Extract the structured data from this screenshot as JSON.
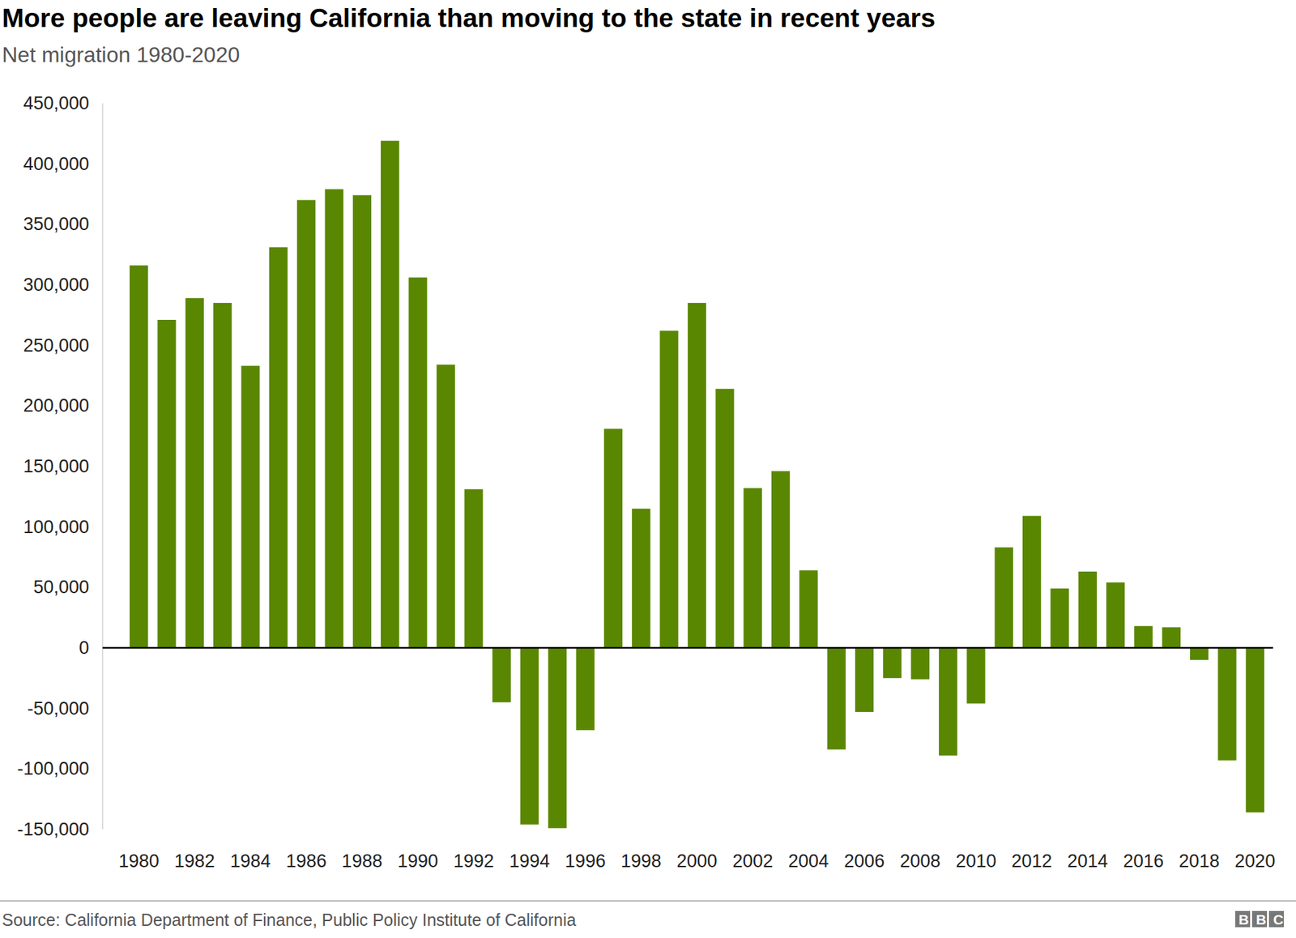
{
  "chart_data": {
    "type": "bar",
    "title": "More people are leaving California than moving to the state in recent years",
    "subtitle": "Net migration 1980-2020",
    "source": "Source: California Department of Finance, Public Policy Institute of California",
    "logo": "BBC",
    "categories": [
      "1980",
      null,
      "1982",
      null,
      "1984",
      null,
      "1986",
      null,
      "1988",
      null,
      "1990",
      null,
      "1992",
      null,
      "1994",
      null,
      "1996",
      null,
      "1998",
      null,
      "2000",
      null,
      "2002",
      null,
      "2004",
      null,
      "2006",
      null,
      "2008",
      null,
      "2010",
      null,
      "2012",
      null,
      "2014",
      null,
      "2016",
      null,
      "2018",
      null,
      "2020"
    ],
    "values": [
      316000,
      271000,
      289000,
      285000,
      233000,
      331000,
      370000,
      379000,
      374000,
      419000,
      306000,
      234000,
      131000,
      -45000,
      -146000,
      -149000,
      -68000,
      181000,
      115000,
      262000,
      285000,
      214000,
      132000,
      146000,
      64000,
      -84000,
      -53000,
      -25000,
      -26000,
      -89000,
      -46000,
      83000,
      109000,
      49000,
      63000,
      54000,
      18000,
      17000,
      -10000,
      -93000,
      -136000
    ],
    "color": "#5a8702",
    "ylim": [
      -150000,
      450000
    ],
    "yticks": [
      {
        "value": 450000,
        "label": "450,000"
      },
      {
        "value": 400000,
        "label": "400,000"
      },
      {
        "value": 350000,
        "label": "350,000"
      },
      {
        "value": 300000,
        "label": "300,000"
      },
      {
        "value": 250000,
        "label": "250,000"
      },
      {
        "value": 200000,
        "label": "200,000"
      },
      {
        "value": 150000,
        "label": "150,000"
      },
      {
        "value": 100000,
        "label": "100,000"
      },
      {
        "value": 50000,
        "label": "50,000"
      },
      0,
      {
        "value": -50000,
        "label": "-50,000"
      },
      {
        "value": -100000,
        "label": "-100,000"
      },
      {
        "value": -150000,
        "label": "-150,000"
      }
    ],
    "grid": false
  }
}
